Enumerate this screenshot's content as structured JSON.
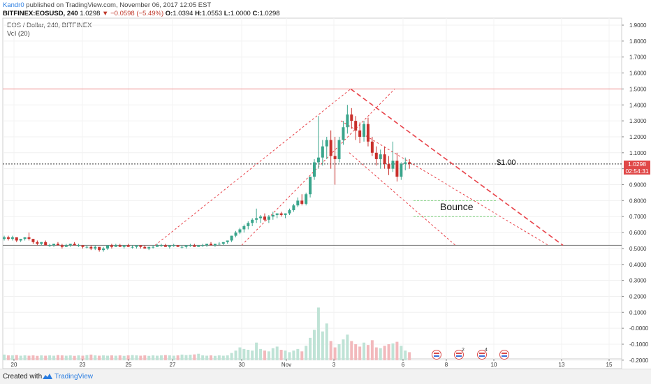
{
  "header": {
    "author": "Kandr0",
    "published": "published on TradingView.com, November 06, 2017 12:05 EST",
    "symbol": "BITFINEX:EOSUSD, 240",
    "last": "1.0298",
    "change": "−0.0598 (−5.49%)",
    "o_label": "O:",
    "o_value": "1.0394",
    "h_label": "H:",
    "h_value": "1.0553",
    "l_label": "L:",
    "l_value": "1.0000",
    "c_label": "C:",
    "c_value": "1.0298"
  },
  "series_title": "EOS / Dollar, 240, BITFINEX",
  "volume_title": "Vol (20)",
  "price_tag": "1.0298",
  "countdown_tag": "02:54:31",
  "footer": {
    "created_with": "Created with",
    "brand": "TradingView"
  },
  "colors": {
    "up": "#3aa58c",
    "down": "#c9302c",
    "vol_up": "#bfe3d6",
    "vol_down": "#f2b9bc",
    "trend": "#e8434a",
    "bounce": "#7fd17f",
    "accent": "#2a7de1"
  },
  "chart_data": {
    "type": "candlestick",
    "title": "EOS / Dollar, 240, BITFINEX",
    "y_axis_labels": [
      "1.9000",
      "1.8000",
      "1.7000",
      "1.6000",
      "1.5000",
      "1.4000",
      "1.3000",
      "1.2000",
      "1.1000",
      "1.0000",
      "0.9000",
      "0.8000",
      "0.7000",
      "0.6000",
      "0.5000",
      "0.4000",
      "0.3000",
      "0.2000",
      "0.1000",
      "-0.0000",
      "-0.1000",
      "-0.2000"
    ],
    "x_axis_labels": [
      "20",
      "23",
      "25",
      "27",
      "30",
      "Nov",
      "3",
      "6",
      "8",
      "10",
      "13",
      "15"
    ],
    "ylim": [
      -0.23,
      1.93
    ],
    "price_levels": [
      1.5,
      1.0298,
      0.52
    ],
    "candles_ohlc": [
      [
        0.56,
        0.58,
        0.55,
        0.57
      ],
      [
        0.57,
        0.58,
        0.55,
        0.56
      ],
      [
        0.56,
        0.58,
        0.55,
        0.57
      ],
      [
        0.57,
        0.57,
        0.54,
        0.55
      ],
      [
        0.55,
        0.56,
        0.54,
        0.56
      ],
      [
        0.56,
        0.57,
        0.55,
        0.57
      ],
      [
        0.57,
        0.6,
        0.55,
        0.56
      ],
      [
        0.56,
        0.56,
        0.53,
        0.54
      ],
      [
        0.54,
        0.55,
        0.52,
        0.53
      ],
      [
        0.53,
        0.54,
        0.52,
        0.54
      ],
      [
        0.54,
        0.55,
        0.52,
        0.52
      ],
      [
        0.52,
        0.53,
        0.51,
        0.52
      ],
      [
        0.52,
        0.53,
        0.51,
        0.53
      ],
      [
        0.53,
        0.54,
        0.52,
        0.52
      ],
      [
        0.52,
        0.53,
        0.5,
        0.51
      ],
      [
        0.51,
        0.53,
        0.51,
        0.52
      ],
      [
        0.52,
        0.53,
        0.51,
        0.53
      ],
      [
        0.53,
        0.54,
        0.52,
        0.52
      ],
      [
        0.52,
        0.53,
        0.51,
        0.52
      ],
      [
        0.52,
        0.52,
        0.5,
        0.51
      ],
      [
        0.51,
        0.52,
        0.5,
        0.51
      ],
      [
        0.51,
        0.52,
        0.49,
        0.5
      ],
      [
        0.5,
        0.52,
        0.49,
        0.51
      ],
      [
        0.51,
        0.51,
        0.48,
        0.49
      ],
      [
        0.49,
        0.51,
        0.48,
        0.5
      ],
      [
        0.5,
        0.52,
        0.49,
        0.52
      ],
      [
        0.52,
        0.53,
        0.5,
        0.51
      ],
      [
        0.51,
        0.53,
        0.51,
        0.52
      ],
      [
        0.52,
        0.53,
        0.51,
        0.51
      ],
      [
        0.51,
        0.52,
        0.5,
        0.52
      ],
      [
        0.52,
        0.53,
        0.51,
        0.51
      ],
      [
        0.51,
        0.52,
        0.5,
        0.51
      ],
      [
        0.51,
        0.52,
        0.5,
        0.52
      ],
      [
        0.52,
        0.52,
        0.5,
        0.51
      ],
      [
        0.51,
        0.52,
        0.5,
        0.5
      ],
      [
        0.5,
        0.51,
        0.49,
        0.51
      ],
      [
        0.51,
        0.52,
        0.5,
        0.51
      ],
      [
        0.51,
        0.53,
        0.51,
        0.52
      ],
      [
        0.52,
        0.53,
        0.51,
        0.52
      ],
      [
        0.52,
        0.53,
        0.51,
        0.51
      ],
      [
        0.51,
        0.52,
        0.5,
        0.52
      ],
      [
        0.52,
        0.53,
        0.51,
        0.52
      ],
      [
        0.52,
        0.52,
        0.51,
        0.51
      ],
      [
        0.51,
        0.52,
        0.5,
        0.51
      ],
      [
        0.51,
        0.52,
        0.5,
        0.52
      ],
      [
        0.52,
        0.53,
        0.51,
        0.52
      ],
      [
        0.52,
        0.53,
        0.51,
        0.51
      ],
      [
        0.51,
        0.52,
        0.51,
        0.52
      ],
      [
        0.52,
        0.53,
        0.51,
        0.52
      ],
      [
        0.52,
        0.53,
        0.51,
        0.53
      ],
      [
        0.53,
        0.54,
        0.52,
        0.52
      ],
      [
        0.52,
        0.53,
        0.51,
        0.53
      ],
      [
        0.53,
        0.54,
        0.52,
        0.53
      ],
      [
        0.53,
        0.54,
        0.52,
        0.54
      ],
      [
        0.54,
        0.55,
        0.53,
        0.55
      ],
      [
        0.55,
        0.58,
        0.54,
        0.58
      ],
      [
        0.58,
        0.61,
        0.57,
        0.6
      ],
      [
        0.6,
        0.63,
        0.59,
        0.62
      ],
      [
        0.62,
        0.65,
        0.6,
        0.64
      ],
      [
        0.64,
        0.67,
        0.62,
        0.66
      ],
      [
        0.66,
        0.69,
        0.64,
        0.68
      ],
      [
        0.68,
        0.75,
        0.66,
        0.69
      ],
      [
        0.69,
        0.71,
        0.66,
        0.7
      ],
      [
        0.7,
        0.72,
        0.67,
        0.68
      ],
      [
        0.68,
        0.71,
        0.66,
        0.7
      ],
      [
        0.7,
        0.73,
        0.68,
        0.71
      ],
      [
        0.71,
        0.72,
        0.69,
        0.72
      ],
      [
        0.72,
        0.73,
        0.7,
        0.71
      ],
      [
        0.71,
        0.72,
        0.69,
        0.72
      ],
      [
        0.72,
        0.75,
        0.71,
        0.74
      ],
      [
        0.74,
        0.78,
        0.73,
        0.77
      ],
      [
        0.77,
        0.82,
        0.76,
        0.8
      ],
      [
        0.8,
        0.84,
        0.77,
        0.78
      ],
      [
        0.78,
        0.85,
        0.77,
        0.84
      ],
      [
        0.84,
        0.92,
        0.82,
        0.95
      ],
      [
        0.95,
        1.06,
        0.93,
        1.04
      ],
      [
        1.04,
        1.33,
        1.0,
        1.07
      ],
      [
        1.07,
        1.18,
        1.02,
        1.14
      ],
      [
        1.14,
        1.2,
        1.06,
        1.18
      ],
      [
        1.18,
        1.24,
        1.0,
        1.08
      ],
      [
        1.08,
        1.2,
        0.9,
        1.06
      ],
      [
        1.06,
        1.2,
        1.04,
        1.18
      ],
      [
        1.18,
        1.3,
        1.15,
        1.26
      ],
      [
        1.26,
        1.4,
        1.22,
        1.34
      ],
      [
        1.34,
        1.38,
        1.25,
        1.3
      ],
      [
        1.3,
        1.33,
        1.18,
        1.24
      ],
      [
        1.24,
        1.29,
        1.16,
        1.2
      ],
      [
        1.2,
        1.3,
        1.17,
        1.28
      ],
      [
        1.28,
        1.32,
        1.14,
        1.17
      ],
      [
        1.17,
        1.2,
        1.08,
        1.1
      ],
      [
        1.1,
        1.14,
        1.02,
        1.06
      ],
      [
        1.06,
        1.12,
        1.0,
        1.09
      ],
      [
        1.09,
        1.14,
        1.0,
        1.03
      ],
      [
        1.03,
        1.08,
        0.96,
        1.0
      ],
      [
        1.0,
        1.17,
        0.98,
        1.05
      ],
      [
        1.05,
        1.1,
        0.92,
        0.95
      ],
      [
        0.95,
        1.04,
        0.93,
        1.03
      ],
      [
        1.03,
        1.07,
        0.99,
        1.04
      ],
      [
        1.04,
        1.06,
        1.0,
        1.03
      ]
    ],
    "volumes": [
      0.035,
      0.03,
      0.03,
      0.032,
      0.028,
      0.03,
      0.028,
      0.03,
      0.027,
      0.03,
      0.028,
      0.03,
      0.028,
      0.032,
      0.03,
      0.028,
      0.03,
      0.027,
      0.03,
      0.028,
      0.032,
      0.035,
      0.03,
      0.028,
      0.03,
      0.028,
      0.03,
      0.028,
      0.03,
      0.027,
      0.03,
      0.032,
      0.03,
      0.028,
      0.03,
      0.027,
      0.03,
      0.028,
      0.03,
      0.032,
      0.03,
      0.028,
      0.03,
      0.035,
      0.032,
      0.034,
      0.036,
      0.04,
      0.03,
      0.028,
      0.03,
      0.027,
      0.03,
      0.028,
      0.03,
      0.045,
      0.06,
      0.08,
      0.07,
      0.065,
      0.06,
      0.11,
      0.07,
      0.06,
      0.055,
      0.075,
      0.085,
      0.065,
      0.06,
      0.05,
      0.06,
      0.07,
      0.055,
      0.09,
      0.14,
      0.19,
      0.33,
      0.18,
      0.23,
      0.12,
      0.08,
      0.1,
      0.13,
      0.16,
      0.12,
      0.1,
      0.085,
      0.11,
      0.095,
      0.125,
      0.08,
      0.075,
      0.09,
      0.1,
      0.105,
      0.115,
      0.09,
      0.06,
      0.05
    ],
    "annotations": [
      "$1.00",
      "Bounce"
    ]
  }
}
